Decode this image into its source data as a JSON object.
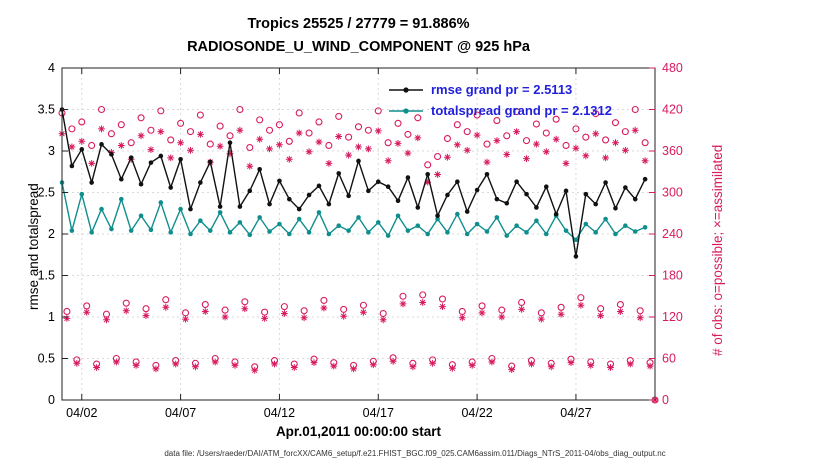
{
  "titles": {
    "line1": "Tropics 25525 / 27779 = 91.886%",
    "line2": "RADIOSONDE_U_WIND_COMPONENT @ 925 hPa"
  },
  "axes": {
    "xlabel": "Apr.01,2011 00:00:00 start",
    "ylabel_left": "rmse and totalspread",
    "ylabel_right": "# of obs: o=possible; ×=assimilated",
    "caption": "data file: /Users/raeder/DAI/ATM_forcXX/CAM6_setup/f.e21.FHIST_BGC.f09_025.CAM6assim.011/Diags_NTrS_2011-04/obs_diag_output.nc"
  },
  "legend": {
    "rmse_label": "rmse grand pr = 2.5113",
    "totalspread_label": "totalspread grand pr = 2.1312",
    "text_color": "#2020dd"
  },
  "colors": {
    "rmse": "#111111",
    "totalspread": "#0f8e8e",
    "obs": "#d81b60",
    "grid": "#d9d9d9",
    "axis": "#222222"
  },
  "chart_data": {
    "type": "line",
    "title": "Tropics 25525 / 27779 = 91.886% | RADIOSONDE_U_WIND_COMPONENT @ 925 hPa",
    "xlabel": "Apr.01,2011 00:00:00 start",
    "ylabel_left": "rmse and totalspread",
    "ylabel_right": "# of obs: o=possible; ×=assimilated",
    "grand_totals": {
      "rmse": 2.5113,
      "totalspread": 2.1312,
      "possible": 27779,
      "assimilated": 25525,
      "pct_assimilated": 91.886
    },
    "xlim": [
      0,
      30
    ],
    "ylim_left": [
      0,
      4
    ],
    "ylim_right": [
      0,
      480
    ],
    "grid": true,
    "xticks": {
      "positions": [
        1,
        6,
        11,
        16,
        21,
        26
      ],
      "labels": [
        "04/02",
        "04/07",
        "04/12",
        "04/17",
        "04/22",
        "04/27"
      ]
    },
    "yticks_left": [
      0,
      0.5,
      1,
      1.5,
      2,
      2.5,
      3,
      3.5,
      4
    ],
    "yticks_right": [
      0,
      60,
      120,
      180,
      240,
      300,
      360,
      420,
      480
    ],
    "series": [
      {
        "name": "rmse",
        "axis": "left",
        "marker": "dot",
        "line": true,
        "x0": 0,
        "dx": 0.5,
        "values": [
          3.5,
          2.82,
          3.02,
          2.62,
          3.08,
          2.96,
          2.66,
          2.92,
          2.6,
          2.86,
          2.94,
          2.56,
          2.9,
          2.3,
          2.62,
          2.87,
          2.33,
          3.1,
          2.33,
          2.52,
          2.78,
          2.36,
          2.64,
          2.42,
          2.3,
          2.47,
          2.58,
          2.36,
          2.73,
          2.46,
          2.88,
          2.52,
          2.63,
          2.57,
          2.4,
          2.68,
          2.32,
          2.72,
          2.22,
          2.47,
          2.63,
          2.27,
          2.53,
          2.72,
          2.42,
          2.37,
          2.63,
          2.48,
          2.32,
          2.57,
          2.24,
          2.52,
          1.73,
          2.48,
          2.36,
          2.62,
          2.31,
          2.56,
          2.42,
          2.66
        ]
      },
      {
        "name": "totalspread",
        "axis": "left",
        "marker": "dot",
        "line": true,
        "x0": 0,
        "dx": 0.5,
        "values": [
          2.62,
          2.04,
          2.48,
          2.02,
          2.3,
          2.06,
          2.42,
          2.04,
          2.22,
          2.05,
          2.38,
          2.02,
          2.3,
          2.0,
          2.16,
          2.04,
          2.26,
          2.02,
          2.14,
          1.99,
          2.2,
          2.03,
          2.12,
          2.0,
          2.18,
          2.02,
          2.26,
          2.0,
          2.1,
          2.04,
          2.2,
          2.02,
          2.14,
          1.98,
          2.22,
          2.04,
          2.1,
          2.0,
          2.18,
          2.02,
          2.24,
          2.0,
          2.12,
          2.03,
          2.2,
          1.98,
          2.1,
          2.02,
          2.16,
          2.0,
          2.22,
          2.04,
          1.93,
          2.12,
          2.02,
          2.18,
          2.0,
          2.1,
          2.03,
          2.08
        ]
      },
      {
        "name": "possible",
        "axis": "right",
        "marker": "circle",
        "line": false,
        "x0": 0,
        "dx": 0.25,
        "values": [
          415,
          128,
          392,
          58,
          402,
          136,
          368,
          52,
          420,
          124,
          385,
          60,
          398,
          140,
          372,
          55,
          408,
          132,
          390,
          50,
          418,
          145,
          376,
          57,
          400,
          126,
          388,
          53,
          412,
          138,
          370,
          60,
          396,
          130,
          382,
          55,
          420,
          142,
          365,
          48,
          405,
          127,
          390,
          57,
          398,
          135,
          374,
          52,
          415,
          129,
          386,
          59,
          402,
          144,
          368,
          54,
          410,
          131,
          380,
          50,
          395,
          137,
          390,
          56,
          418,
          125,
          372,
          61,
          400,
          150,
          384,
          53,
          408,
          152,
          340,
          58,
          352,
          146,
          378,
          51,
          398,
          128,
          388,
          55,
          412,
          136,
          370,
          60,
          404,
          130,
          382,
          49,
          417,
          141,
          375,
          57,
          399,
          126,
          386,
          53,
          406,
          134,
          368,
          59,
          392,
          148,
          380,
          55,
          414,
          132,
          376,
          52,
          401,
          138,
          388,
          57,
          420,
          129,
          372,
          54,
          0
        ]
      },
      {
        "name": "assimilated",
        "axis": "right",
        "marker": "asterisk",
        "line": false,
        "x0": 0,
        "dx": 0.25,
        "values": [
          385,
          118,
          366,
          53,
          374,
          127,
          342,
          47,
          392,
          116,
          358,
          55,
          368,
          129,
          348,
          50,
          382,
          122,
          362,
          45,
          388,
          134,
          350,
          52,
          372,
          117,
          361,
          48,
          384,
          128,
          344,
          55,
          367,
          120,
          356,
          50,
          390,
          132,
          338,
          43,
          377,
          118,
          363,
          52,
          369,
          125,
          348,
          47,
          386,
          119,
          359,
          54,
          373,
          133,
          342,
          49,
          381,
          121,
          354,
          45,
          366,
          127,
          363,
          51,
          389,
          116,
          346,
          56,
          371,
          139,
          357,
          48,
          379,
          141,
          315,
          53,
          326,
          135,
          351,
          46,
          369,
          119,
          361,
          50,
          383,
          126,
          344,
          55,
          375,
          120,
          355,
          44,
          388,
          131,
          349,
          52,
          370,
          117,
          359,
          48,
          377,
          124,
          342,
          54,
          364,
          137,
          353,
          50,
          385,
          122,
          350,
          47,
          372,
          128,
          361,
          52,
          390,
          119,
          346,
          49,
          0
        ]
      }
    ]
  }
}
